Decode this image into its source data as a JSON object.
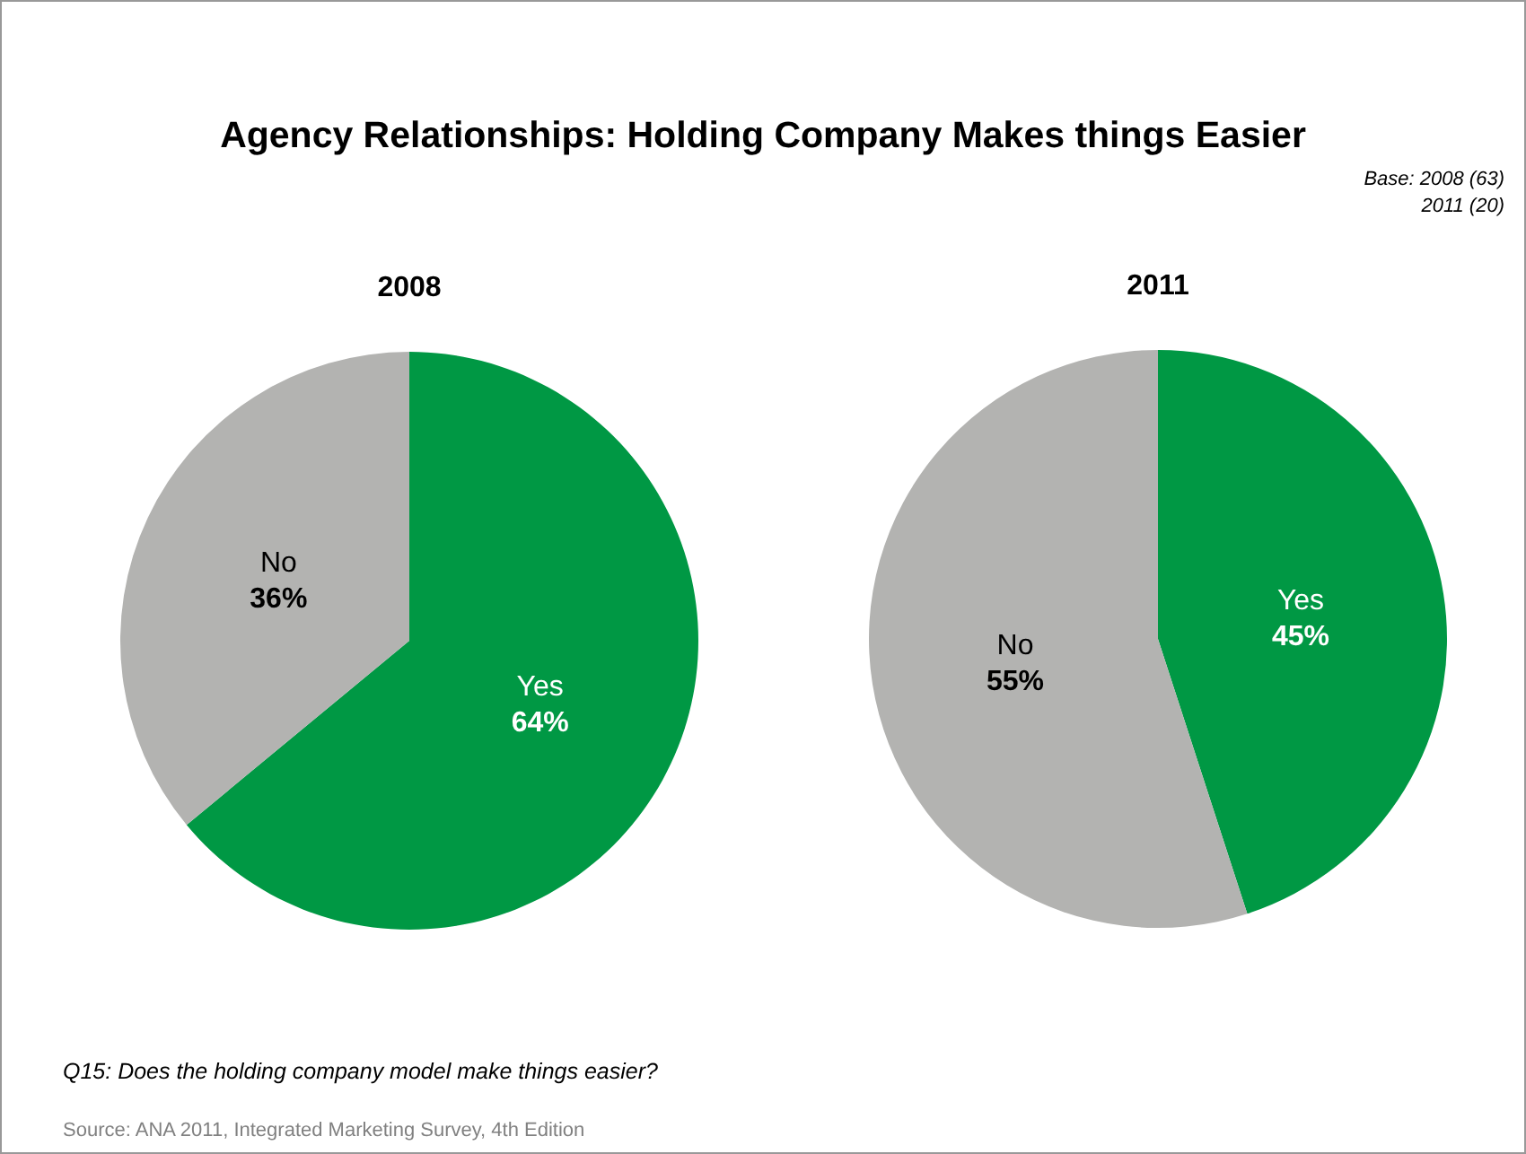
{
  "chart_data": [
    {
      "type": "other",
      "title": "Agency Relationships: Holding Company Makes things Easier",
      "annotations": [
        "Base: 2008 (63)",
        "2011 (20)",
        "Q15: Does the holding company model make things easier?",
        "Source: ANA 2011, Integrated Marketing Survey, 4th Edition"
      ]
    },
    {
      "type": "pie",
      "title": "2008",
      "categories": [
        "Yes",
        "No"
      ],
      "values": [
        64,
        36
      ],
      "colors": [
        "#009844",
        "#b3b3b1"
      ],
      "value_labels": [
        "64%",
        "36%"
      ]
    },
    {
      "type": "pie",
      "title": "2011",
      "categories": [
        "Yes",
        "No"
      ],
      "values": [
        45,
        55
      ],
      "colors": [
        "#009844",
        "#b3b3b1"
      ],
      "value_labels": [
        "45%",
        "55%"
      ]
    }
  ]
}
